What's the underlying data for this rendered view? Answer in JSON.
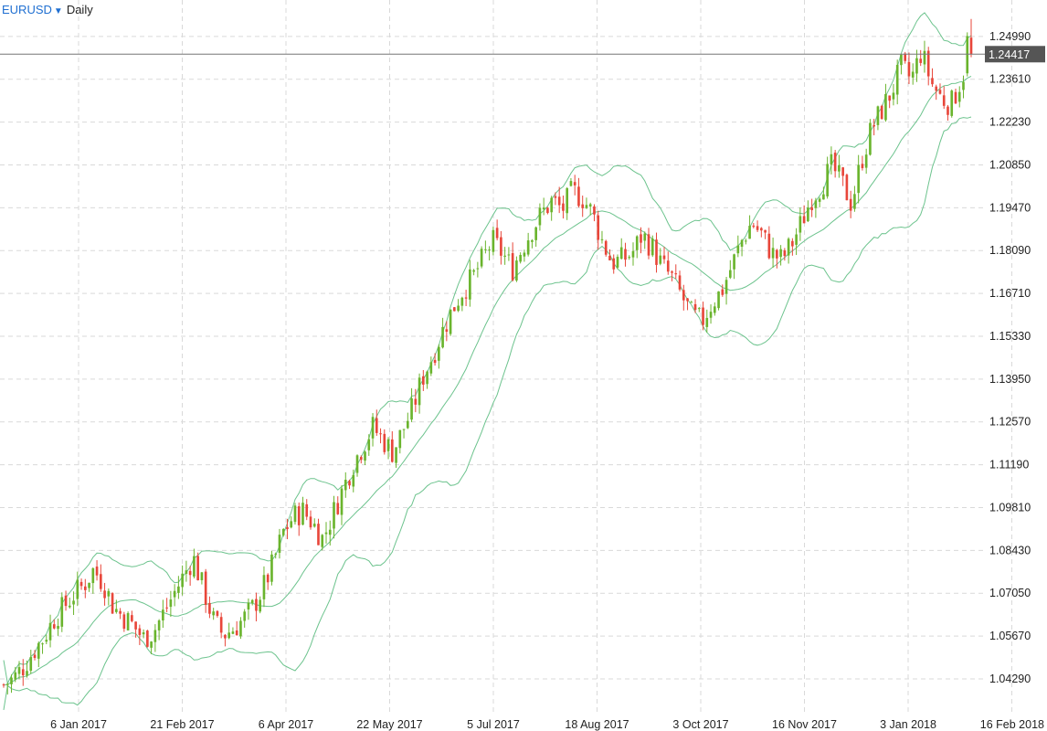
{
  "header": {
    "symbol": "EURUSD",
    "dropdown_icon": "caret-down-icon",
    "timeframe": "Daily"
  },
  "colors": {
    "up": "#6ab42d",
    "down": "#e8463a",
    "band": "#6cc38d",
    "grid": "#d9d9d9",
    "price_line": "#777777",
    "price_tag_bg": "#555555"
  },
  "chart_data": {
    "type": "candlestick",
    "title": "",
    "symbol": "EURUSD",
    "timeframe": "Daily",
    "ylim": [
      1.032,
      1.2575
    ],
    "y_ticks": [
      "1.24990",
      "1.23610",
      "1.22230",
      "1.20850",
      "1.19470",
      "1.18090",
      "1.16710",
      "1.15330",
      "1.13950",
      "1.12570",
      "1.11190",
      "1.09810",
      "1.08430",
      "1.07050",
      "1.05670",
      "1.04290"
    ],
    "x_ticks": [
      "6 Jan 2017",
      "21 Feb 2017",
      "6 Apr 2017",
      "22 May 2017",
      "5 Jul 2017",
      "18 Aug 2017",
      "3 Oct 2017",
      "16 Nov 2017",
      "3 Jan 2018",
      "16 Feb 2018"
    ],
    "current_price": "1.24417",
    "bollinger_bands": true,
    "grid": true,
    "y_axis_position": "right",
    "approx_closes": [
      1.041,
      1.043,
      1.047,
      1.052,
      1.056,
      1.062,
      1.066,
      1.07,
      1.073,
      1.078,
      1.074,
      1.066,
      1.063,
      1.06,
      1.056,
      1.058,
      1.064,
      1.07,
      1.076,
      1.082,
      1.072,
      1.062,
      1.057,
      1.059,
      1.062,
      1.066,
      1.072,
      1.08,
      1.09,
      1.095,
      1.097,
      1.093,
      1.088,
      1.096,
      1.104,
      1.112,
      1.118,
      1.124,
      1.12,
      1.116,
      1.123,
      1.13,
      1.14,
      1.147,
      1.155,
      1.162,
      1.168,
      1.172,
      1.178,
      1.184,
      1.18,
      1.175,
      1.182,
      1.188,
      1.193,
      1.197,
      1.194,
      1.2,
      1.198,
      1.193,
      1.184,
      1.177,
      1.178,
      1.18,
      1.186,
      1.182,
      1.176,
      1.172,
      1.166,
      1.16,
      1.158,
      1.164,
      1.168,
      1.176,
      1.184,
      1.19,
      1.186,
      1.18,
      1.178,
      1.183,
      1.19,
      1.198,
      1.202,
      1.208,
      1.203,
      1.196,
      1.21,
      1.22,
      1.226,
      1.232,
      1.24,
      1.236,
      1.245,
      1.235,
      1.23,
      1.228,
      1.236,
      1.244
    ]
  }
}
